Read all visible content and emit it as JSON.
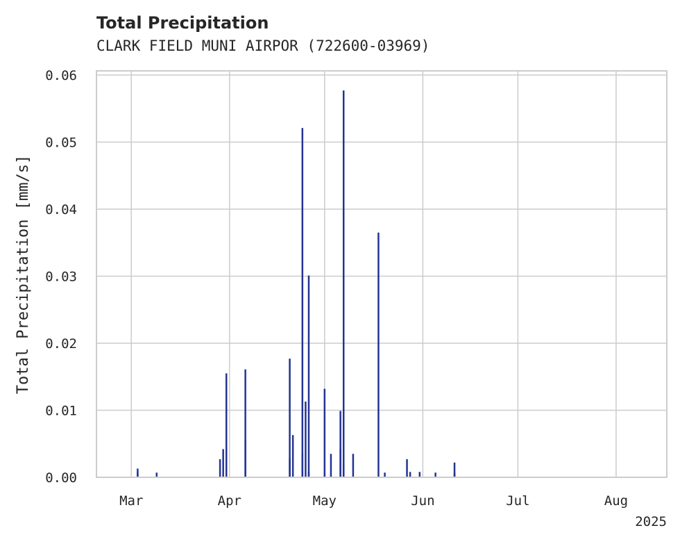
{
  "chart_data": {
    "type": "bar",
    "title": "Total Precipitation",
    "subtitle": "CLARK FIELD MUNI AIRPOR (722600-03969)",
    "ylabel": "Total Precipitation [mm/s]",
    "xlabel": "",
    "ylim": [
      0,
      0.06
    ],
    "xlim": [
      "2025-02-18",
      "2025-08-17"
    ],
    "grid": true,
    "color": "#233494",
    "y_ticks": [
      {
        "value": 0.0,
        "label": "0.00"
      },
      {
        "value": 0.01,
        "label": "0.01"
      },
      {
        "value": 0.02,
        "label": "0.02"
      },
      {
        "value": 0.03,
        "label": "0.03"
      },
      {
        "value": 0.04,
        "label": "0.04"
      },
      {
        "value": 0.05,
        "label": "0.05"
      },
      {
        "value": 0.06,
        "label": "0.06"
      }
    ],
    "x_ticks": [
      {
        "date": "2025-03-01",
        "label": "Mar"
      },
      {
        "date": "2025-04-01",
        "label": "Apr"
      },
      {
        "date": "2025-05-01",
        "label": "May"
      },
      {
        "date": "2025-06-01",
        "label": "Jun"
      },
      {
        "date": "2025-07-01",
        "label": "Jul"
      },
      {
        "date": "2025-08-01",
        "label": "Aug"
      }
    ],
    "x_offset_label": "2025",
    "series": [
      {
        "name": "Total Precipitation",
        "points": [
          {
            "date": "2025-03-03",
            "value": 0.0013
          },
          {
            "date": "2025-03-03",
            "value": 0.0008
          },
          {
            "date": "2025-03-09",
            "value": 0.0007
          },
          {
            "date": "2025-03-29",
            "value": 0.0027
          },
          {
            "date": "2025-03-30",
            "value": 0.0042
          },
          {
            "date": "2025-03-31",
            "value": 0.0155
          },
          {
            "date": "2025-03-31",
            "value": 0.0013
          },
          {
            "date": "2025-04-06",
            "value": 0.0161
          },
          {
            "date": "2025-04-06",
            "value": 0.0055
          },
          {
            "date": "2025-04-20",
            "value": 0.0177
          },
          {
            "date": "2025-04-20",
            "value": 0.0028
          },
          {
            "date": "2025-04-21",
            "value": 0.0063
          },
          {
            "date": "2025-04-24",
            "value": 0.0521
          },
          {
            "date": "2025-04-24",
            "value": 0.0035
          },
          {
            "date": "2025-04-25",
            "value": 0.0113
          },
          {
            "date": "2025-04-26",
            "value": 0.0301
          },
          {
            "date": "2025-04-26",
            "value": 0.0008
          },
          {
            "date": "2025-05-01",
            "value": 0.0132
          },
          {
            "date": "2025-05-01",
            "value": 0.0008
          },
          {
            "date": "2025-05-03",
            "value": 0.0035
          },
          {
            "date": "2025-05-06",
            "value": 0.0042
          },
          {
            "date": "2025-05-06",
            "value": 0.0099
          },
          {
            "date": "2025-05-07",
            "value": 0.0577
          },
          {
            "date": "2025-05-07",
            "value": 0.0022
          },
          {
            "date": "2025-05-10",
            "value": 0.0035
          },
          {
            "date": "2025-05-18",
            "value": 0.0365
          },
          {
            "date": "2025-05-20",
            "value": 0.0007
          },
          {
            "date": "2025-05-27",
            "value": 0.0027
          },
          {
            "date": "2025-05-28",
            "value": 0.0008
          },
          {
            "date": "2025-05-31",
            "value": 0.0008
          },
          {
            "date": "2025-06-05",
            "value": 0.0007
          },
          {
            "date": "2025-06-11",
            "value": 0.0022
          },
          {
            "date": "2025-06-11",
            "value": 0.0007
          }
        ]
      }
    ]
  }
}
